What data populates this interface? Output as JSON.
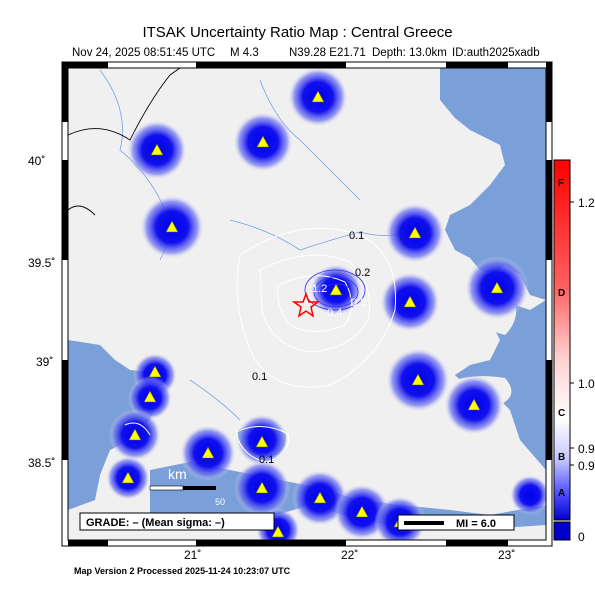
{
  "header": {
    "title": "ITSAK Uncertainty Ratio Map : Central Greece",
    "date": "Nov 24, 2025 08:51:45 UTC",
    "magnitude": "M 4.3",
    "location": "N39.28 E21.71",
    "depth": "Depth: 13.0km",
    "event_id": "ID:auth2025xadb"
  },
  "map": {
    "lon_labels": [
      "21˚",
      "22˚",
      "23˚"
    ],
    "lat_labels": [
      "40˚",
      "39.5˚",
      "39˚",
      "38.5˚"
    ],
    "contour_labels": [
      "0.1",
      "0.2",
      "0.1",
      "0.1",
      "1.2",
      "0.3",
      "0.4"
    ],
    "epicenter_marker": "red-star",
    "colors": {
      "land": "#f0f0f0",
      "water": "#7a9fd9",
      "high": "#0000ee",
      "epicenter": "#ff0000",
      "station": "#ffff00"
    }
  },
  "scale_bar": {
    "label": "km",
    "value": "50"
  },
  "grade_box": "GRADE: – (Mean sigma: –)",
  "mi_legend": "MI = 6.0",
  "colorbar": {
    "values": [
      "1.2",
      "1.0",
      "0.9",
      "0.9",
      "0"
    ],
    "letters": [
      "F",
      "D",
      "C",
      "B",
      "A"
    ],
    "top_color": "#ff0000",
    "mid_color": "#ffffff",
    "bottom_color": "#0000cc"
  },
  "footer": "Map Version 2 Processed 2025-11-24 10:23:07 UTC"
}
